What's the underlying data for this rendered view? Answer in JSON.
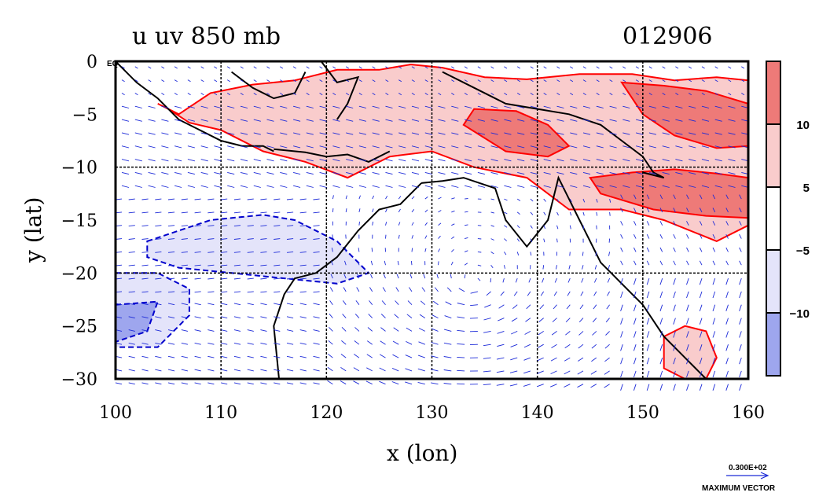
{
  "chart_data": {
    "type": "contour+vector",
    "title_left": "u uv 850 mb",
    "title_right": "012906",
    "xlabel": "x (lon)",
    "ylabel": "y (lat)",
    "xlim": [
      100,
      160
    ],
    "ylim": [
      -30,
      0
    ],
    "x_ticks": [
      "100",
      "110",
      "120",
      "130",
      "140",
      "150",
      "160"
    ],
    "y_ticks": [
      "0",
      "−5",
      "−10",
      "−15",
      "−20",
      "−25",
      "−30"
    ],
    "y_tick_values": [
      0,
      -5,
      -10,
      -15,
      -20,
      -25,
      -30
    ],
    "x_tick_values": [
      100,
      110,
      120,
      130,
      140,
      150,
      160
    ],
    "eq_label": "EQ",
    "grid": true,
    "contour_levels": [
      -10,
      -5,
      5,
      10
    ],
    "colorbar_ticks": [
      "10",
      "5",
      "−5",
      "−10"
    ],
    "colorbar_colors": [
      "#ee7a78",
      "#f9cccc",
      "#ffffff",
      "#e4e4fa",
      "#9ea6ee"
    ],
    "positive_line_color": "#ff0000",
    "negative_line_color": "#0000cc",
    "vector_color": "#1c2ad8",
    "vector_scale_label": "0.300E+02",
    "vector_scale_caption": "MAXIMUM VECTOR",
    "regions": [
      {
        "level": "5",
        "lon": [
          106,
          109,
          113,
          117,
          121,
          125,
          128,
          131,
          135,
          139,
          144,
          149,
          153,
          157,
          160,
          160,
          157,
          152,
          148,
          143,
          139,
          134,
          130,
          126,
          122,
          118,
          114,
          110,
          107,
          105,
          104
        ],
        "lat": [
          -5,
          -3,
          -2.2,
          -1.8,
          -0.8,
          -0.8,
          -0.3,
          -0.6,
          -1.5,
          -1.7,
          -1.2,
          -1.2,
          -1.8,
          -1.5,
          -1.8,
          -15.5,
          -17,
          -15,
          -14,
          -14,
          -11,
          -10,
          -8.5,
          -9,
          -11,
          -9.5,
          -8.5,
          -6.5,
          -5.8,
          -4.5,
          -4
        ]
      },
      {
        "level": "10",
        "lon": [
          134,
          138,
          141,
          143,
          141,
          137,
          133
        ],
        "lat": [
          -4.5,
          -4.7,
          -6,
          -8,
          -9,
          -8.5,
          -6
        ]
      },
      {
        "level": "10",
        "lon": [
          148,
          152,
          156,
          160,
          160,
          157,
          153,
          150
        ],
        "lat": [
          -2,
          -2.3,
          -2.8,
          -4,
          -8,
          -8.2,
          -7,
          -5
        ]
      },
      {
        "level": "10",
        "lon": [
          145,
          149,
          153,
          157,
          160,
          160,
          156,
          151,
          146
        ],
        "lat": [
          -11,
          -10.5,
          -10.2,
          -10.6,
          -11,
          -14.8,
          -14.6,
          -14,
          -12.5
        ]
      },
      {
        "level": "5",
        "lon": [
          152,
          154,
          156,
          157,
          156,
          154,
          152
        ],
        "lat": [
          -26,
          -25,
          -25.5,
          -28,
          -30,
          -30,
          -29
        ]
      },
      {
        "level": "-5",
        "lon": [
          103,
          109,
          114,
          117,
          121,
          124,
          121,
          116,
          111,
          106,
          103
        ],
        "lat": [
          -17,
          -15,
          -14.5,
          -15,
          -17,
          -20,
          -21,
          -20.5,
          -20,
          -19.5,
          -18.5
        ]
      },
      {
        "level": "-5",
        "lon": [
          100,
          104,
          107,
          107,
          104,
          100
        ],
        "lat": [
          -20,
          -20,
          -21.5,
          -24,
          -27,
          -27
        ]
      },
      {
        "level": "-10",
        "lon": [
          100,
          104,
          103,
          100
        ],
        "lat": [
          -23,
          -22.7,
          -25.5,
          -26.5
        ]
      }
    ],
    "coastlines": [
      {
        "lon": [
          100,
          102,
          104,
          106,
          108,
          110,
          112,
          114,
          115
        ],
        "lat": [
          0,
          -2,
          -3.5,
          -5.5,
          -6.5,
          -7.5,
          -8,
          -8,
          -8.5
        ]
      },
      {
        "lon": [
          115,
          118,
          120,
          122,
          124,
          126
        ],
        "lat": [
          -8.3,
          -8.6,
          -9,
          -8.8,
          -9.5,
          -8.5
        ]
      },
      {
        "lon": [
          111,
          113,
          115,
          117,
          118
        ],
        "lat": [
          -1,
          -2.5,
          -3.5,
          -3,
          -1
        ]
      },
      {
        "lon": [
          119.5,
          121,
          123,
          122,
          121
        ],
        "lat": [
          0,
          -2,
          -1.5,
          -4,
          -5.5
        ]
      },
      {
        "lon": [
          131,
          134,
          137,
          140,
          143,
          146,
          148,
          150,
          151,
          152,
          150
        ],
        "lat": [
          -1,
          -2.5,
          -4,
          -4.5,
          -5,
          -6,
          -7.5,
          -9,
          -10.5,
          -11,
          -10.5
        ]
      },
      {
        "lon": [
          129,
          131,
          133,
          136,
          137,
          139,
          141,
          142,
          143,
          144,
          145,
          146,
          147,
          148,
          149,
          150,
          151,
          152,
          153,
          154,
          155,
          156
        ],
        "lat": [
          -11.5,
          -11.3,
          -11,
          -12,
          -15,
          -17.5,
          -15,
          -11,
          -13,
          -15,
          -17,
          -19,
          -20,
          -21,
          -22,
          -23,
          -24.5,
          -26,
          -27,
          -28,
          -29,
          -30
        ]
      },
      {
        "lon": [
          129,
          127,
          125,
          123,
          121,
          119,
          117,
          116,
          115,
          115.5
        ],
        "lat": [
          -11.5,
          -13.5,
          -14,
          -16,
          -18.5,
          -20,
          -20.5,
          -22,
          -25,
          -30
        ]
      }
    ],
    "vector_field": {
      "lon_step": 1.25,
      "lat_step": 1.25,
      "description": "monsoon westerlies north of 12S, easterly trades and anticyclonic flow over Australia"
    }
  }
}
